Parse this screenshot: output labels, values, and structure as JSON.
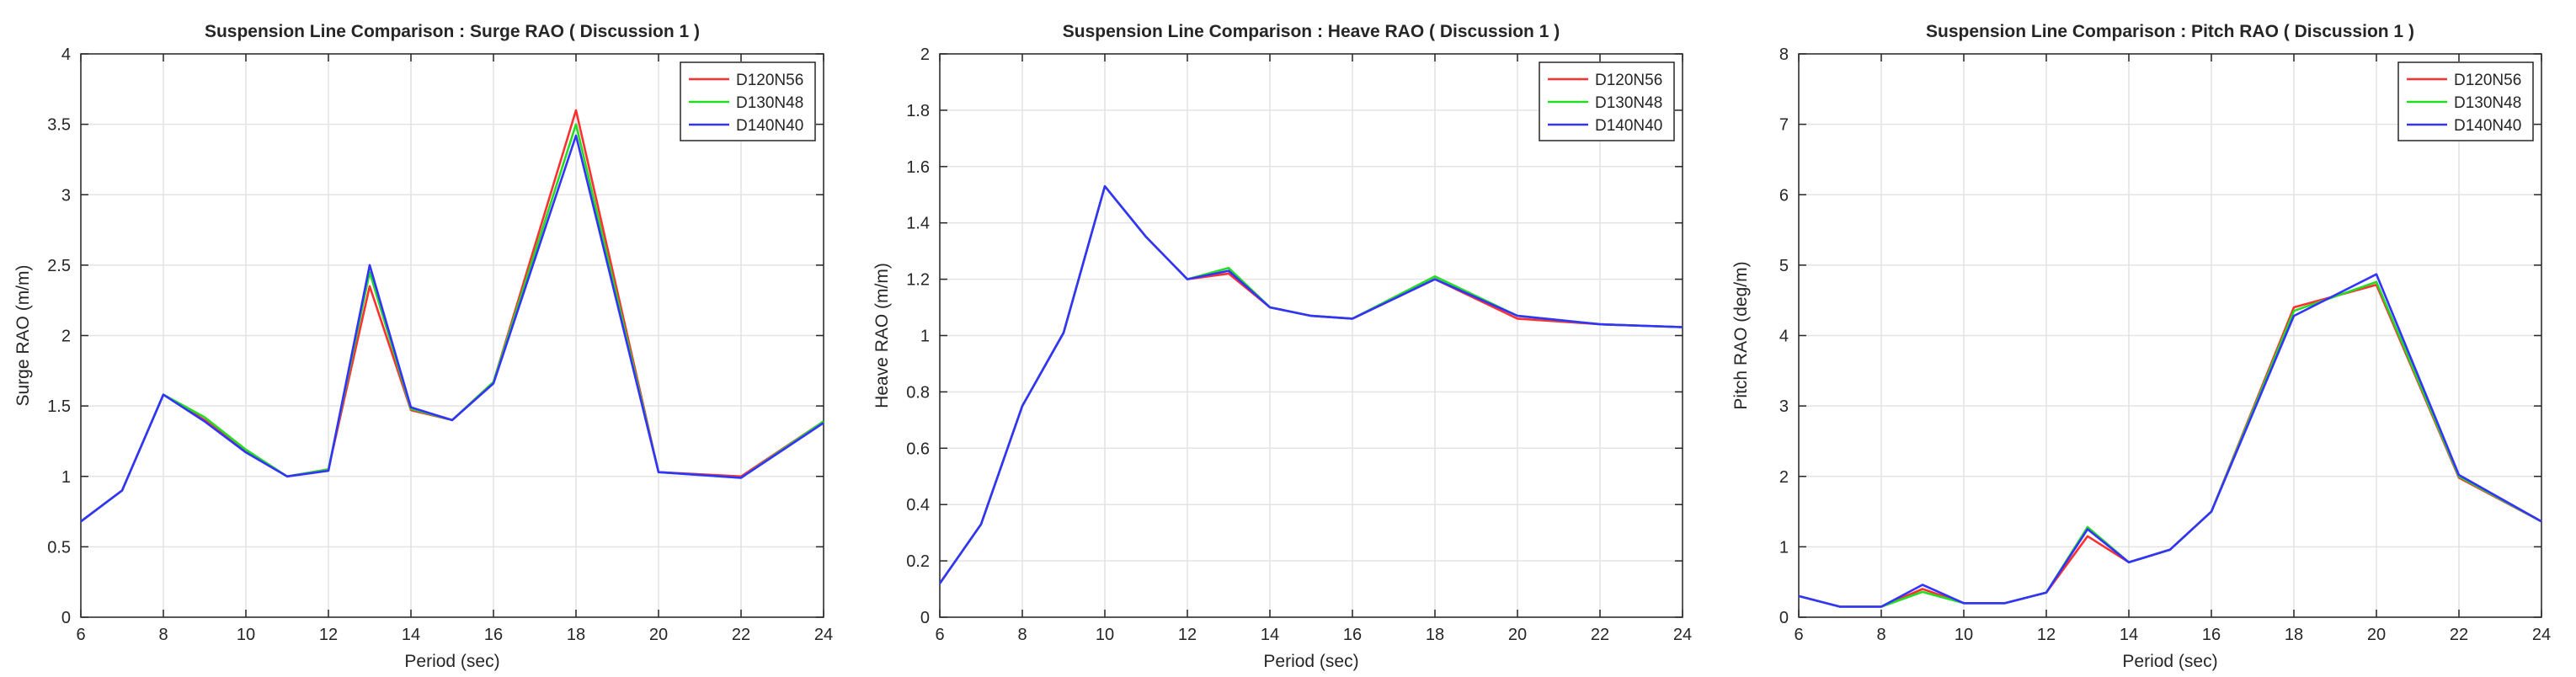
{
  "chart_data": [
    {
      "type": "line",
      "title": "Suspension Line Comparison : Surge RAO ( Discussion 1 )",
      "xlabel": "Period (sec)",
      "ylabel": "Surge RAO (m/m)",
      "xlim": [
        6,
        24
      ],
      "ylim": [
        0,
        4
      ],
      "xticks": [
        "6",
        "8",
        "10",
        "12",
        "14",
        "16",
        "18",
        "20",
        "22",
        "24"
      ],
      "yticks": [
        "0",
        "0.5",
        "1",
        "1.5",
        "2",
        "2.5",
        "3",
        "3.5",
        "4"
      ],
      "grid": true,
      "legend_position": "top-right",
      "x": [
        6,
        7,
        8,
        9,
        10,
        11,
        12,
        13,
        14,
        15,
        16,
        18,
        20,
        22,
        24
      ],
      "series": [
        {
          "name": "D120N56",
          "color": "#ff3030",
          "values": [
            0.68,
            0.9,
            1.58,
            1.4,
            1.18,
            1.0,
            1.05,
            2.35,
            1.47,
            1.4,
            1.67,
            3.6,
            1.03,
            1.0,
            1.39
          ]
        },
        {
          "name": "D130N48",
          "color": "#22dd22",
          "values": [
            0.68,
            0.9,
            1.58,
            1.42,
            1.19,
            1.0,
            1.05,
            2.45,
            1.48,
            1.4,
            1.67,
            3.5,
            1.03,
            0.99,
            1.39
          ]
        },
        {
          "name": "D140N40",
          "color": "#3333ff",
          "values": [
            0.68,
            0.9,
            1.58,
            1.39,
            1.17,
            1.0,
            1.04,
            2.5,
            1.49,
            1.4,
            1.66,
            3.42,
            1.03,
            0.99,
            1.38
          ]
        }
      ]
    },
    {
      "type": "line",
      "title": "Suspension Line Comparison : Heave RAO ( Discussion 1 )",
      "xlabel": "Period (sec)",
      "ylabel": "Heave RAO (m/m)",
      "xlim": [
        6,
        24
      ],
      "ylim": [
        0,
        2
      ],
      "xticks": [
        "6",
        "8",
        "10",
        "12",
        "14",
        "16",
        "18",
        "20",
        "22",
        "24"
      ],
      "yticks": [
        "0",
        "0.2",
        "0.4",
        "0.6",
        "0.8",
        "1",
        "1.2",
        "1.4",
        "1.6",
        "1.8",
        "2"
      ],
      "grid": true,
      "legend_position": "top-right",
      "x": [
        6,
        7,
        8,
        9,
        10,
        11,
        12,
        13,
        14,
        15,
        16,
        18,
        20,
        22,
        24
      ],
      "series": [
        {
          "name": "D120N56",
          "color": "#ff3030",
          "values": [
            0.12,
            0.33,
            0.75,
            1.01,
            1.53,
            1.35,
            1.2,
            1.22,
            1.1,
            1.07,
            1.06,
            1.2,
            1.06,
            1.04,
            1.03
          ]
        },
        {
          "name": "D130N48",
          "color": "#22dd22",
          "values": [
            0.12,
            0.33,
            0.75,
            1.01,
            1.53,
            1.35,
            1.2,
            1.24,
            1.1,
            1.07,
            1.06,
            1.21,
            1.07,
            1.04,
            1.03
          ]
        },
        {
          "name": "D140N40",
          "color": "#3333ff",
          "values": [
            0.12,
            0.33,
            0.75,
            1.01,
            1.53,
            1.35,
            1.2,
            1.23,
            1.1,
            1.07,
            1.06,
            1.2,
            1.07,
            1.04,
            1.03
          ]
        }
      ]
    },
    {
      "type": "line",
      "title": "Suspension Line Comparison : Pitch RAO ( Discussion 1 )",
      "xlabel": "Period (sec)",
      "ylabel": "Pitch RAO (deg/m)",
      "xlim": [
        6,
        24
      ],
      "ylim": [
        0,
        8
      ],
      "xticks": [
        "6",
        "8",
        "10",
        "12",
        "14",
        "16",
        "18",
        "20",
        "22",
        "24"
      ],
      "yticks": [
        "0",
        "1",
        "2",
        "3",
        "4",
        "5",
        "6",
        "7",
        "8"
      ],
      "grid": true,
      "legend_position": "top-right",
      "x": [
        6,
        7,
        8,
        9,
        10,
        11,
        12,
        13,
        14,
        15,
        16,
        18,
        20,
        22,
        24
      ],
      "series": [
        {
          "name": "D120N56",
          "color": "#ff3030",
          "values": [
            0.3,
            0.15,
            0.15,
            0.4,
            0.2,
            0.2,
            0.35,
            1.15,
            0.78,
            0.96,
            1.5,
            4.4,
            4.72,
            1.98,
            1.36
          ]
        },
        {
          "name": "D130N48",
          "color": "#22dd22",
          "values": [
            0.3,
            0.15,
            0.15,
            0.36,
            0.2,
            0.2,
            0.35,
            1.28,
            0.78,
            0.96,
            1.5,
            4.35,
            4.76,
            2.0,
            1.36
          ]
        },
        {
          "name": "D140N40",
          "color": "#3333ff",
          "values": [
            0.3,
            0.15,
            0.15,
            0.46,
            0.2,
            0.2,
            0.35,
            1.25,
            0.78,
            0.96,
            1.5,
            4.28,
            4.87,
            2.02,
            1.36
          ]
        }
      ]
    }
  ]
}
